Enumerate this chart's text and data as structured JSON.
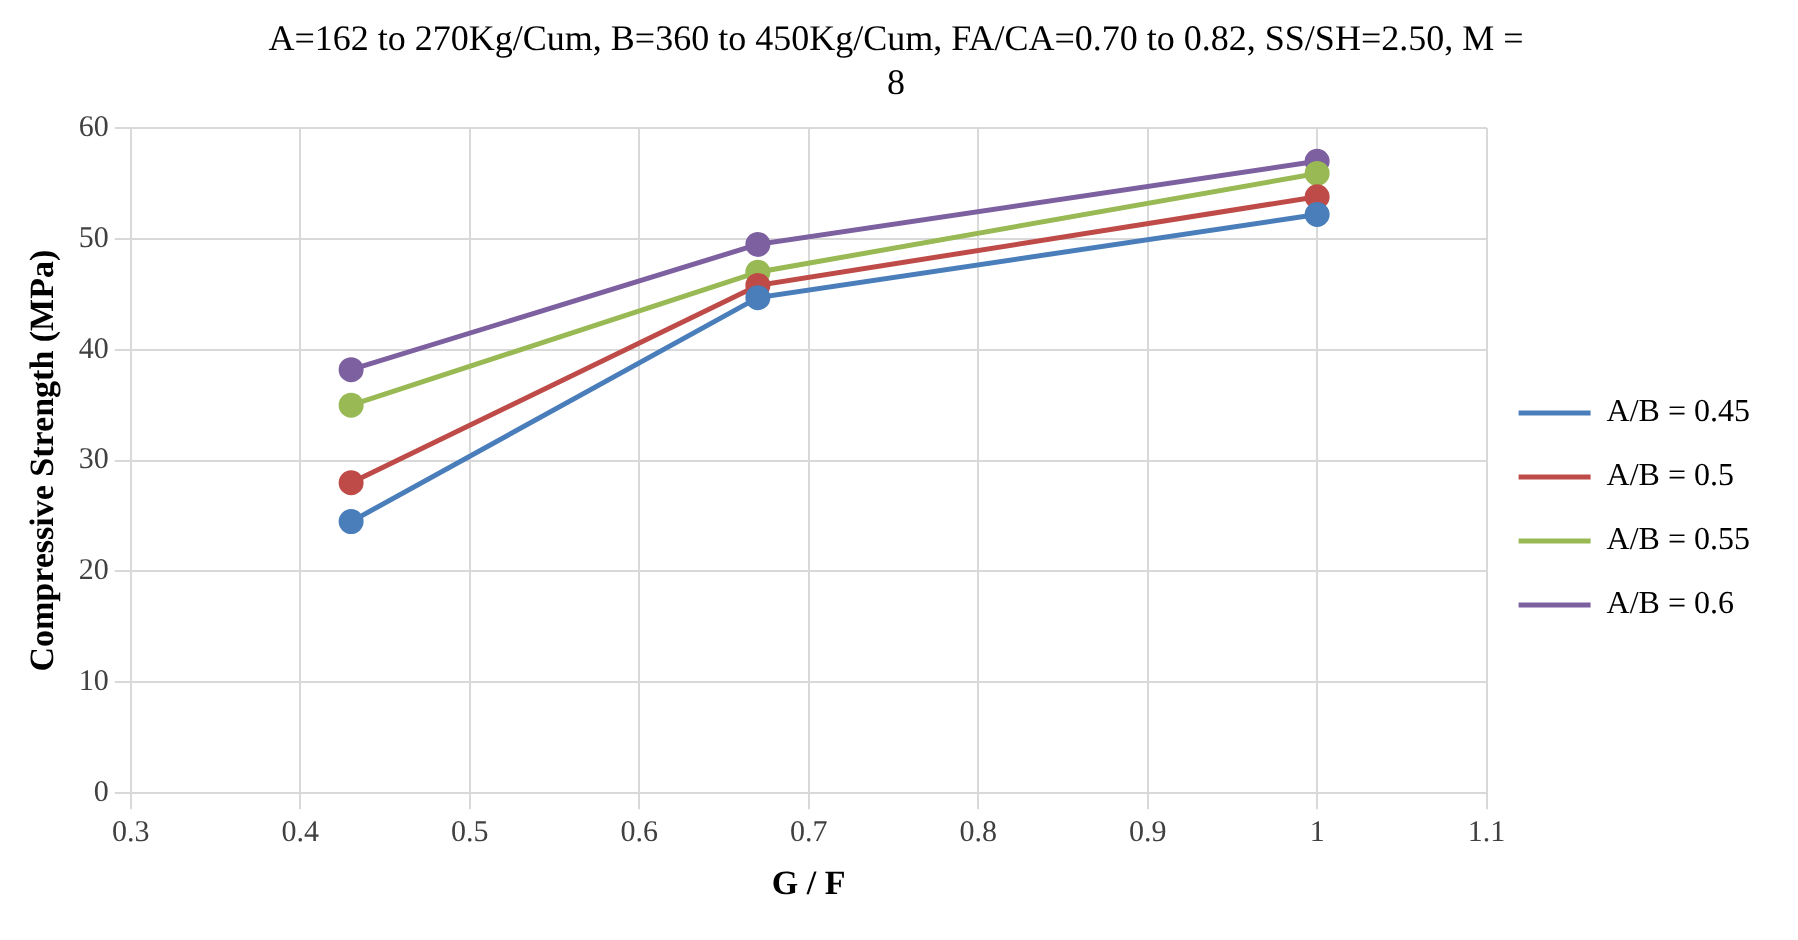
{
  "chart_data": {
    "type": "line",
    "title": "A=162 to 270Kg/Cum, B=360 to 450Kg/Cum, FA/CA=0.70 to 0.82, SS/SH=2.50, M = 8",
    "xlabel": "G / F",
    "ylabel": "Compressive Strength (MPa)",
    "x": [
      0.43,
      0.67,
      1
    ],
    "series": [
      {
        "name": "A/B = 0.45",
        "color": "#4a7ebb",
        "values": [
          24.5,
          44.7,
          52.2
        ]
      },
      {
        "name": "A/B = 0.5",
        "color": "#be4b48",
        "values": [
          28.0,
          45.8,
          53.8
        ]
      },
      {
        "name": "A/B = 0.55",
        "color": "#98b954",
        "values": [
          35.0,
          47.0,
          55.9
        ]
      },
      {
        "name": "A/B = 0.6",
        "color": "#7d60a0",
        "values": [
          38.2,
          49.5,
          57.0
        ]
      }
    ],
    "xlim": [
      0.3,
      1.1
    ],
    "xticks": [
      0.3,
      0.4,
      0.5,
      0.6,
      0.7,
      0.8,
      0.9,
      1,
      1.1
    ],
    "ylim": [
      0,
      60
    ],
    "yticks": [
      0,
      10,
      20,
      30,
      40,
      50,
      60
    ],
    "grid": true,
    "legend": "right",
    "marker": "circle",
    "line_style": "solid"
  }
}
